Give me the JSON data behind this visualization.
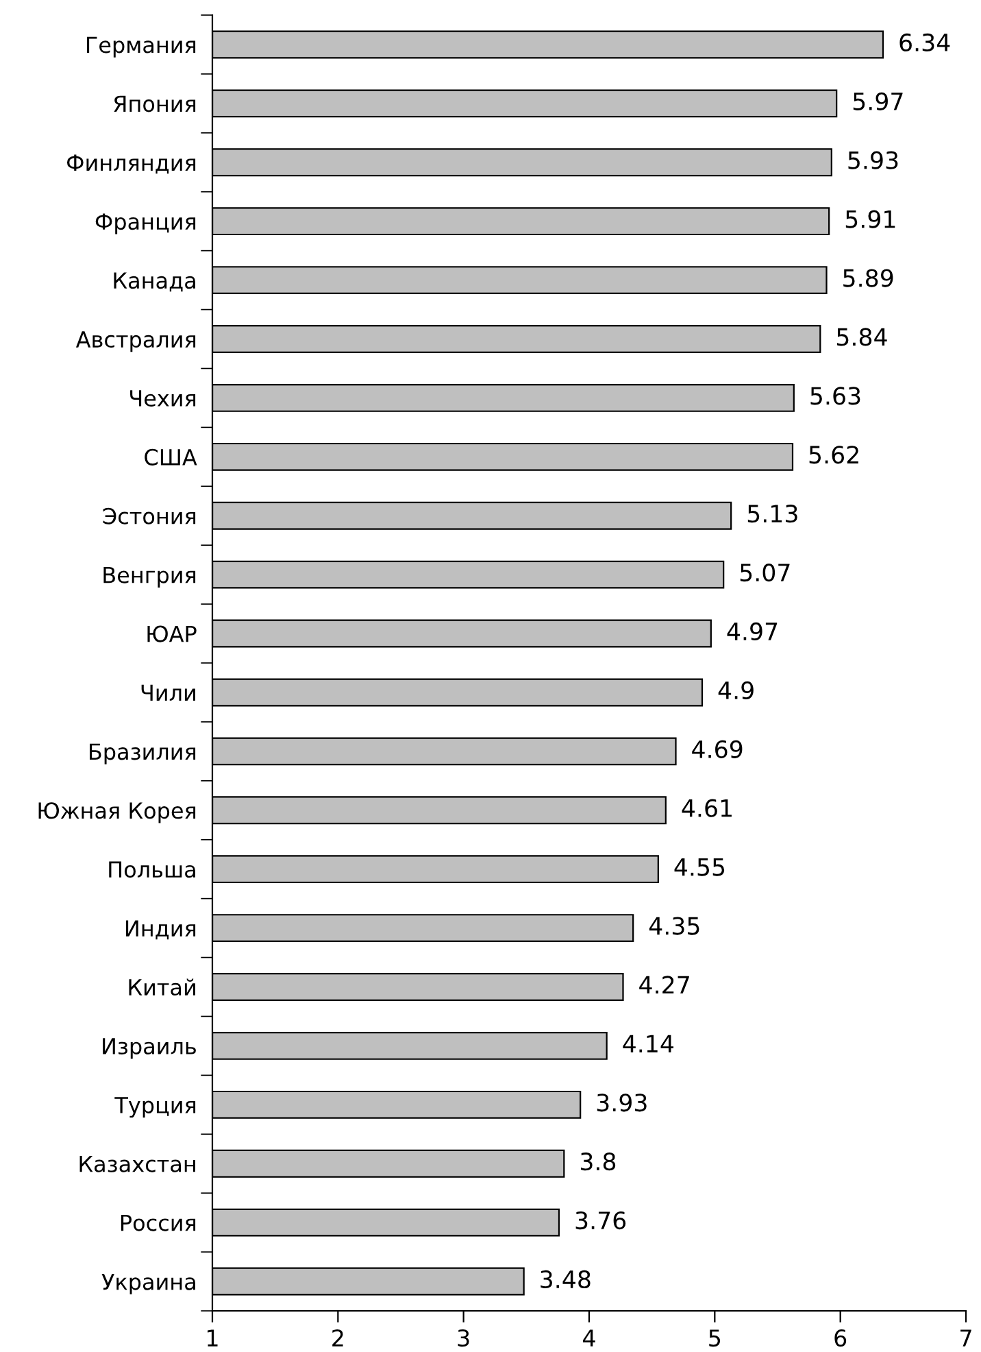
{
  "chart_data": {
    "type": "bar",
    "orientation": "horizontal",
    "categories": [
      "Германия",
      "Япония",
      "Финляндия",
      "Франция",
      "Канада",
      "Австралия",
      "Чехия",
      "США",
      "Эстония",
      "Венгрия",
      "ЮАР",
      "Чили",
      "Бразилия",
      "Южная Корея",
      "Польша",
      "Индия",
      "Китай",
      "Израиль",
      "Турция",
      "Казахстан",
      "Россия",
      "Украина"
    ],
    "values": [
      6.34,
      5.97,
      5.93,
      5.91,
      5.89,
      5.84,
      5.63,
      5.62,
      5.13,
      5.07,
      4.97,
      4.9,
      4.69,
      4.61,
      4.55,
      4.35,
      4.27,
      4.14,
      3.93,
      3.8,
      3.76,
      3.48
    ],
    "color": "#bfbfbf",
    "xlim": [
      1,
      7
    ],
    "xticks": [
      1,
      2,
      3,
      4,
      5,
      6,
      7
    ],
    "data_labels": true,
    "grid": false,
    "legend": false
  }
}
